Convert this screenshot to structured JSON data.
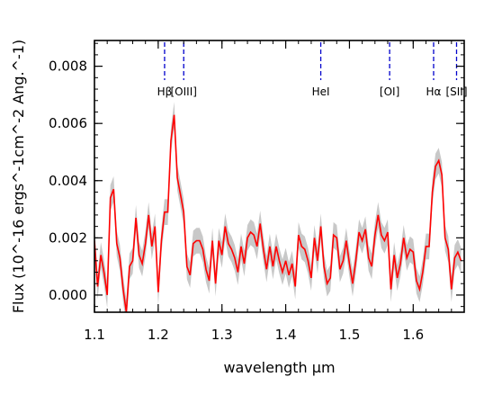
{
  "chart_data": {
    "type": "line",
    "xlabel": "wavelength μm",
    "ylabel": "Flux (10^-16 ergs^-1cm^-2 Ang.^-1)",
    "xlim": [
      1.1,
      1.68
    ],
    "ylim": [
      -0.0006,
      0.0089
    ],
    "x_ticks": [
      "1.1",
      "1.2",
      "1.3",
      "1.4",
      "1.5",
      "1.6"
    ],
    "x_tick_values": [
      1.1,
      1.2,
      1.3,
      1.4,
      1.5,
      1.6
    ],
    "y_ticks": [
      "0.000",
      "0.002",
      "0.004",
      "0.006",
      "0.008"
    ],
    "y_tick_values": [
      0.0,
      0.002,
      0.004,
      0.006,
      0.008
    ],
    "grid": false,
    "series_color": "#ff0000",
    "band_color": "#c8c8c8",
    "lines": [
      {
        "label": "Hβ",
        "x": 1.21
      },
      {
        "label": "[OIII]",
        "x": 1.24
      },
      {
        "label": "HeI",
        "x": 1.455
      },
      {
        "label": "[OI]",
        "x": 1.563
      },
      {
        "label": "Hα",
        "x": 1.632
      },
      {
        "label": "[SII]",
        "x": 1.668
      }
    ],
    "line_color": "#0000cc",
    "series": [
      {
        "x": [
          1.1,
          1.105,
          1.11,
          1.115,
          1.12,
          1.125,
          1.13,
          1.135,
          1.14,
          1.145,
          1.15,
          1.155,
          1.16,
          1.165,
          1.17,
          1.175,
          1.18,
          1.185,
          1.19,
          1.195,
          1.2,
          1.205,
          1.21,
          1.215,
          1.22,
          1.225,
          1.23,
          1.235,
          1.24,
          1.245,
          1.25,
          1.255,
          1.26,
          1.265,
          1.27,
          1.275,
          1.28,
          1.285,
          1.29,
          1.295,
          1.3,
          1.305,
          1.31,
          1.315,
          1.32,
          1.325,
          1.33,
          1.335,
          1.34,
          1.345,
          1.35,
          1.355,
          1.36,
          1.365,
          1.37,
          1.375,
          1.38,
          1.385,
          1.39,
          1.395,
          1.4,
          1.405,
          1.41,
          1.415,
          1.42,
          1.425,
          1.43,
          1.435,
          1.44,
          1.445,
          1.45,
          1.455,
          1.46,
          1.465,
          1.47,
          1.475,
          1.48,
          1.485,
          1.49,
          1.495,
          1.5,
          1.505,
          1.51,
          1.515,
          1.52,
          1.525,
          1.53,
          1.535,
          1.54,
          1.545,
          1.55,
          1.555,
          1.56,
          1.565,
          1.57,
          1.575,
          1.58,
          1.585,
          1.59,
          1.595,
          1.6,
          1.605,
          1.61,
          1.615,
          1.62,
          1.625,
          1.63,
          1.635,
          1.64,
          1.645,
          1.65,
          1.655,
          1.66,
          1.665,
          1.67,
          1.675
        ],
        "y": [
          0.0019,
          0.0003,
          0.0014,
          0.0008,
          0.0,
          0.0034,
          0.0037,
          0.0018,
          0.0013,
          0.0002,
          -0.0006,
          0.001,
          0.0012,
          0.0027,
          0.0014,
          0.0011,
          0.0018,
          0.0028,
          0.0017,
          0.0024,
          0.0001,
          0.0019,
          0.0029,
          0.0029,
          0.0054,
          0.0063,
          0.0041,
          0.0035,
          0.0029,
          0.001,
          0.0007,
          0.0018,
          0.0019,
          0.0019,
          0.0016,
          0.0009,
          0.0005,
          0.0019,
          0.0004,
          0.0019,
          0.0014,
          0.0024,
          0.0018,
          0.0016,
          0.0013,
          0.0008,
          0.0017,
          0.0011,
          0.002,
          0.0022,
          0.0021,
          0.0017,
          0.0025,
          0.0016,
          0.0009,
          0.0017,
          0.001,
          0.0017,
          0.0012,
          0.0008,
          0.0012,
          0.0007,
          0.0011,
          0.0003,
          0.0021,
          0.0017,
          0.0016,
          0.0012,
          0.0006,
          0.002,
          0.0012,
          0.0024,
          0.001,
          0.0004,
          0.0006,
          0.0021,
          0.002,
          0.0009,
          0.0012,
          0.0019,
          0.0011,
          0.0004,
          0.0012,
          0.0022,
          0.0019,
          0.0023,
          0.0013,
          0.001,
          0.0021,
          0.0028,
          0.0021,
          0.0019,
          0.0022,
          0.0002,
          0.0014,
          0.0006,
          0.0011,
          0.002,
          0.0013,
          0.0016,
          0.0015,
          0.0005,
          0.0002,
          0.0008,
          0.0017,
          0.0017,
          0.0036,
          0.0045,
          0.0047,
          0.0042,
          0.002,
          0.0016,
          0.0002,
          0.0013,
          0.0015,
          0.0012
        ]
      }
    ],
    "band_halfwidth": 0.00045
  }
}
